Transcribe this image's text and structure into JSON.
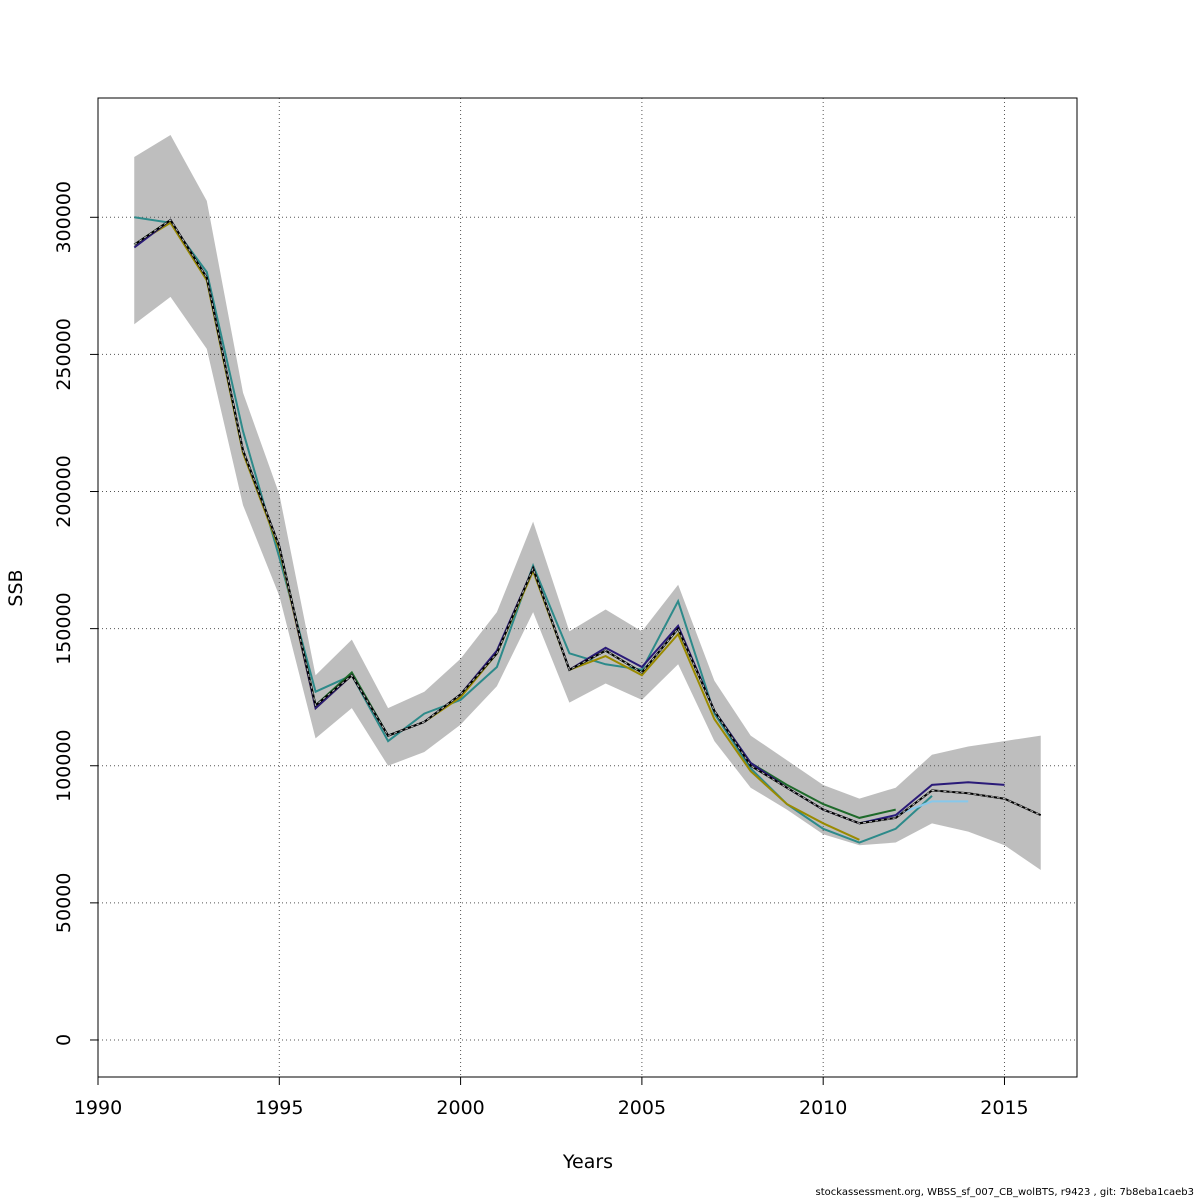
{
  "chart_data": {
    "type": "line",
    "title": "",
    "xlabel": "Years",
    "ylabel": "SSB",
    "xlim": [
      1990,
      2017
    ],
    "ylim": [
      -13500,
      343500
    ],
    "x_ticks": [
      1990,
      1995,
      2000,
      2005,
      2010,
      2015
    ],
    "y_ticks": [
      0,
      50000,
      100000,
      150000,
      200000,
      250000,
      300000
    ],
    "grid": true,
    "legend": "none",
    "confidence_band": {
      "x": [
        1991,
        1992,
        1993,
        1994,
        1995,
        1996,
        1997,
        1998,
        1999,
        2000,
        2001,
        2002,
        2003,
        2004,
        2005,
        2006,
        2007,
        2008,
        2009,
        2010,
        2011,
        2012,
        2013,
        2014,
        2015,
        2016
      ],
      "lower": [
        261000,
        271000,
        252000,
        195000,
        162000,
        110000,
        121000,
        100000,
        105000,
        115000,
        129000,
        156000,
        123000,
        130000,
        124000,
        137000,
        109000,
        92000,
        84000,
        75000,
        71000,
        72000,
        79000,
        76000,
        71000,
        62000
      ],
      "upper": [
        322000,
        330000,
        306000,
        236000,
        199000,
        133000,
        146000,
        121000,
        127000,
        139000,
        156000,
        189000,
        149000,
        157000,
        149000,
        166000,
        131000,
        111000,
        102000,
        93000,
        88000,
        92000,
        104000,
        107000,
        109000,
        111000
      ],
      "color": "#bebebe"
    },
    "series": [
      {
        "color": "#2d8a8a",
        "values": [
          [
            1991,
            300000
          ],
          [
            1992,
            298000
          ],
          [
            1993,
            280000
          ],
          [
            1994,
            222000
          ],
          [
            1995,
            176000
          ],
          [
            1996,
            127000
          ],
          [
            1997,
            133000
          ],
          [
            1998,
            109000
          ],
          [
            1999,
            119000
          ],
          [
            2000,
            124000
          ],
          [
            2001,
            136000
          ],
          [
            2002,
            173000
          ],
          [
            2003,
            141000
          ],
          [
            2004,
            137000
          ],
          [
            2005,
            135000
          ],
          [
            2006,
            160000
          ],
          [
            2007,
            119000
          ],
          [
            2008,
            99000
          ],
          [
            2009,
            86000
          ],
          [
            2010,
            77000
          ],
          [
            2011,
            72000
          ],
          [
            2012,
            77000
          ],
          [
            2013,
            89000
          ]
        ]
      },
      {
        "color": "#9a8a00",
        "values": [
          [
            1991,
            290000
          ],
          [
            1992,
            298000
          ],
          [
            1993,
            277000
          ],
          [
            1994,
            214000
          ],
          [
            1995,
            179000
          ],
          [
            1996,
            121000
          ],
          [
            1997,
            133000
          ],
          [
            1998,
            111000
          ],
          [
            1999,
            116000
          ],
          [
            2000,
            125000
          ],
          [
            2001,
            141000
          ],
          [
            2002,
            171000
          ],
          [
            2003,
            135000
          ],
          [
            2004,
            140000
          ],
          [
            2005,
            133000
          ],
          [
            2006,
            148000
          ],
          [
            2007,
            117000
          ],
          [
            2008,
            98000
          ],
          [
            2009,
            86000
          ],
          [
            2010,
            79000
          ],
          [
            2011,
            73000
          ]
        ]
      },
      {
        "color": "#1e6a2a",
        "values": [
          [
            1991,
            290000
          ],
          [
            1992,
            299000
          ],
          [
            1993,
            278000
          ],
          [
            1994,
            215000
          ],
          [
            1995,
            180000
          ],
          [
            1996,
            122000
          ],
          [
            1997,
            134000
          ],
          [
            1998,
            111000
          ],
          [
            1999,
            116000
          ],
          [
            2000,
            126000
          ],
          [
            2001,
            141000
          ],
          [
            2002,
            172000
          ],
          [
            2003,
            135000
          ],
          [
            2004,
            142000
          ],
          [
            2005,
            134000
          ],
          [
            2006,
            150000
          ],
          [
            2007,
            120000
          ],
          [
            2008,
            101000
          ],
          [
            2009,
            93000
          ],
          [
            2010,
            86000
          ],
          [
            2011,
            81000
          ],
          [
            2012,
            84000
          ]
        ]
      },
      {
        "color": "#87c8eb",
        "values": [
          [
            2011,
            79000
          ],
          [
            2012,
            82000
          ],
          [
            2013,
            87000
          ],
          [
            2014,
            87000
          ]
        ]
      },
      {
        "color": "#2a1a78",
        "values": [
          [
            1991,
            289000
          ],
          [
            1992,
            299000
          ],
          [
            1993,
            278000
          ],
          [
            1994,
            215000
          ],
          [
            1995,
            180000
          ],
          [
            1996,
            121000
          ],
          [
            1997,
            133000
          ],
          [
            1998,
            111000
          ],
          [
            1999,
            116000
          ],
          [
            2000,
            126000
          ],
          [
            2001,
            142000
          ],
          [
            2002,
            172000
          ],
          [
            2003,
            135000
          ],
          [
            2004,
            143000
          ],
          [
            2005,
            136000
          ],
          [
            2006,
            151000
          ],
          [
            2007,
            120000
          ],
          [
            2008,
            101000
          ],
          [
            2009,
            92000
          ],
          [
            2010,
            84000
          ],
          [
            2011,
            79000
          ],
          [
            2012,
            82000
          ],
          [
            2013,
            93000
          ],
          [
            2014,
            94000
          ],
          [
            2015,
            93000
          ]
        ]
      },
      {
        "color": "#000000",
        "dashed": true,
        "values": [
          [
            1991,
            290000
          ],
          [
            1992,
            299000
          ],
          [
            1993,
            278000
          ],
          [
            1994,
            215000
          ],
          [
            1995,
            180000
          ],
          [
            1996,
            122000
          ],
          [
            1997,
            133000
          ],
          [
            1998,
            111000
          ],
          [
            1999,
            116000
          ],
          [
            2000,
            126000
          ],
          [
            2001,
            141000
          ],
          [
            2002,
            172000
          ],
          [
            2003,
            135000
          ],
          [
            2004,
            142000
          ],
          [
            2005,
            134000
          ],
          [
            2006,
            150000
          ],
          [
            2007,
            120000
          ],
          [
            2008,
            100000
          ],
          [
            2009,
            92000
          ],
          [
            2010,
            84000
          ],
          [
            2011,
            79000
          ],
          [
            2012,
            81000
          ],
          [
            2013,
            91000
          ],
          [
            2014,
            90000
          ],
          [
            2015,
            88000
          ],
          [
            2016,
            82000
          ]
        ]
      }
    ]
  },
  "footer": {
    "credit": "stockassessment.org, WBSS_sf_007_CB_wolBTS, r9423 , git: 7b8eba1caeb3"
  }
}
